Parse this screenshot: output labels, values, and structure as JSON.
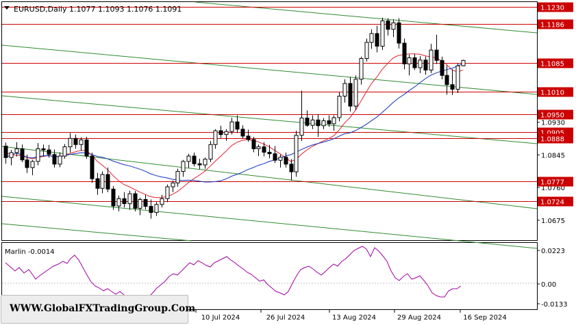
{
  "header": {
    "symbol_line": "EURUSD,Daily  1.1077  1.1093  1.1076  1.1091"
  },
  "indicator": {
    "label": "Marlin -0.0014",
    "axis_ticks": [
      "0.0223",
      "0.00",
      "-0.0133"
    ]
  },
  "watermark": "WWW.GlobalFXTradingGroup.Com",
  "colors": {
    "bull": "#ffffff",
    "bear": "#000000",
    "level": "#cc0000",
    "channel": "#2e8b2e",
    "ma_fast": "#e0202a",
    "ma_slow": "#1030c0",
    "osc": "#a000a0",
    "label_bg": "#cc0000"
  },
  "chart_data": {
    "type": "candlestick",
    "symbol": "EURUSD",
    "timeframe": "Daily",
    "last_bar": {
      "open": 1.1077,
      "high": 1.1093,
      "low": 1.1076,
      "close": 1.1091
    },
    "ylim": [
      1.0623,
      1.1243
    ],
    "x_tick_labels": [
      "10 Jul 2024",
      "26 Jul 2024",
      "13 Aug 2024",
      "29 Aug 2024",
      "16 Sep 2024"
    ],
    "y_tick_labels": [
      "1.0930",
      "1.0845",
      "1.0760",
      "1.0675"
    ],
    "levels": [
      {
        "label": "1.1230",
        "value": 1.123
      },
      {
        "label": "1.1186",
        "value": 1.1186
      },
      {
        "label": "1.1085",
        "value": 1.1085
      },
      {
        "label": "1.1010",
        "value": 1.101
      },
      {
        "label": "1.0950",
        "value": 1.095
      },
      {
        "label": "1.0905",
        "value": 1.0905
      },
      {
        "label": "1.0888",
        "value": 1.0888
      },
      {
        "label": "1.0777",
        "value": 1.0777
      },
      {
        "label": "1.0724",
        "value": 1.0724
      }
    ],
    "candles": [
      [
        1.0868,
        1.0877,
        1.0822,
        1.0838
      ],
      [
        1.0838,
        1.0858,
        1.0818,
        1.0851
      ],
      [
        1.0851,
        1.0878,
        1.0841,
        1.0861
      ],
      [
        1.0861,
        1.0872,
        1.0826,
        1.0832
      ],
      [
        1.0832,
        1.0846,
        1.0798,
        1.0812
      ],
      [
        1.0812,
        1.0832,
        1.0792,
        1.0828
      ],
      [
        1.0828,
        1.0876,
        1.0818,
        1.0861
      ],
      [
        1.0861,
        1.0872,
        1.0841,
        1.0858
      ],
      [
        1.0858,
        1.0871,
        1.0838,
        1.0846
      ],
      [
        1.0846,
        1.0859,
        1.0812,
        1.0821
      ],
      [
        1.0821,
        1.0852,
        1.0813,
        1.0842
      ],
      [
        1.0842,
        1.0873,
        1.0835,
        1.0866
      ],
      [
        1.0866,
        1.0902,
        1.0851,
        1.0888
      ],
      [
        1.0888,
        1.0898,
        1.0861,
        1.0872
      ],
      [
        1.0872,
        1.0891,
        1.0856,
        1.0884
      ],
      [
        1.0884,
        1.0892,
        1.0835,
        1.0842
      ],
      [
        1.0842,
        1.0851,
        1.0772,
        1.0783
      ],
      [
        1.0783,
        1.0798,
        1.0741,
        1.0758
      ],
      [
        1.0758,
        1.0802,
        1.0745,
        1.0794
      ],
      [
        1.0794,
        1.0812,
        1.0748,
        1.0756
      ],
      [
        1.0756,
        1.0764,
        1.0702,
        1.0712
      ],
      [
        1.0712,
        1.0739,
        1.0698,
        1.0731
      ],
      [
        1.0731,
        1.0748,
        1.0708,
        1.0718
      ],
      [
        1.0718,
        1.0752,
        1.0702,
        1.0744
      ],
      [
        1.0744,
        1.0751,
        1.0698,
        1.0706
      ],
      [
        1.0706,
        1.0734,
        1.0688,
        1.0729
      ],
      [
        1.0729,
        1.0741,
        1.0703,
        1.0711
      ],
      [
        1.0711,
        1.0729,
        1.0679,
        1.0695
      ],
      [
        1.0695,
        1.0722,
        1.0686,
        1.0716
      ],
      [
        1.0716,
        1.0741,
        1.0708,
        1.0731
      ],
      [
        1.0731,
        1.0768,
        1.0722,
        1.0762
      ],
      [
        1.0762,
        1.0778,
        1.0748,
        1.0772
      ],
      [
        1.0772,
        1.0809,
        1.0762,
        1.0802
      ],
      [
        1.0802,
        1.0832,
        1.0788,
        1.0828
      ],
      [
        1.0828,
        1.0848,
        1.0811,
        1.0842
      ],
      [
        1.0842,
        1.0851,
        1.0815,
        1.0822
      ],
      [
        1.0822,
        1.0835,
        1.0808,
        1.0819
      ],
      [
        1.0819,
        1.0838,
        1.0809,
        1.0834
      ],
      [
        1.0834,
        1.0881,
        1.0826,
        1.0872
      ],
      [
        1.0872,
        1.0912,
        1.0861,
        1.0908
      ],
      [
        1.0908,
        1.0921,
        1.0889,
        1.0898
      ],
      [
        1.0898,
        1.0912,
        1.0882,
        1.0906
      ],
      [
        1.0906,
        1.0942,
        1.0898,
        1.0931
      ],
      [
        1.0931,
        1.0948,
        1.0902,
        1.0912
      ],
      [
        1.0912,
        1.0922,
        1.0888,
        1.0894
      ],
      [
        1.0894,
        1.0911,
        1.0879,
        1.0885
      ],
      [
        1.0885,
        1.0892,
        1.0852,
        1.0861
      ],
      [
        1.0861,
        1.0872,
        1.0842,
        1.0866
      ],
      [
        1.0866,
        1.0878,
        1.0841,
        1.0852
      ],
      [
        1.0852,
        1.0871,
        1.0836,
        1.0848
      ],
      [
        1.0848,
        1.0868,
        1.0824,
        1.0831
      ],
      [
        1.0831,
        1.0846,
        1.0812,
        1.0839
      ],
      [
        1.0839,
        1.0851,
        1.0812,
        1.0821
      ],
      [
        1.0821,
        1.0834,
        1.0778,
        1.0801
      ],
      [
        1.0801,
        1.0908,
        1.0788,
        1.0896
      ],
      [
        1.0896,
        1.1012,
        1.0881,
        1.0941
      ],
      [
        1.0941,
        1.0961,
        1.0918,
        1.0922
      ],
      [
        1.0922,
        1.0948,
        1.0912,
        1.0936
      ],
      [
        1.0936,
        1.0951,
        1.0892,
        1.0921
      ],
      [
        1.0921,
        1.0941,
        1.0912,
        1.0934
      ],
      [
        1.0934,
        1.0948,
        1.0918,
        1.0926
      ],
      [
        1.0926,
        1.0948,
        1.0908,
        1.0942
      ],
      [
        1.0942,
        1.1008,
        1.0932,
        1.0998
      ],
      [
        1.0998,
        1.1042,
        1.0981,
        1.1031
      ],
      [
        1.1031,
        1.1048,
        1.0958,
        1.0972
      ],
      [
        1.0972,
        1.1052,
        1.0962,
        1.1042
      ],
      [
        1.1042,
        1.1101,
        1.1028,
        1.1096
      ],
      [
        1.1096,
        1.1148,
        1.1088,
        1.1138
      ],
      [
        1.1138,
        1.1172,
        1.1121,
        1.1161
      ],
      [
        1.1161,
        1.1181,
        1.1112,
        1.1128
      ],
      [
        1.1128,
        1.1202,
        1.1118,
        1.1194
      ],
      [
        1.1194,
        1.1201,
        1.1156,
        1.1172
      ],
      [
        1.1172,
        1.1198,
        1.1152,
        1.1189
      ],
      [
        1.1189,
        1.1201,
        1.1122,
        1.1136
      ],
      [
        1.1136,
        1.1148,
        1.1068,
        1.1082
      ],
      [
        1.1082,
        1.1106,
        1.1052,
        1.1098
      ],
      [
        1.1098,
        1.1108,
        1.1066,
        1.1072
      ],
      [
        1.1072,
        1.1102,
        1.1058,
        1.1092
      ],
      [
        1.1092,
        1.1101,
        1.1054,
        1.1066
      ],
      [
        1.1066,
        1.1134,
        1.1058,
        1.1118
      ],
      [
        1.1118,
        1.1158,
        1.1082,
        1.1091
      ],
      [
        1.1091,
        1.1101,
        1.1042,
        1.1052
      ],
      [
        1.1052,
        1.1078,
        1.1002,
        1.1028
      ],
      [
        1.1028,
        1.1068,
        1.1001,
        1.1016
      ],
      [
        1.1016,
        1.1084,
        1.1006,
        1.1077
      ],
      [
        1.1077,
        1.1093,
        1.1076,
        1.1091
      ]
    ],
    "ma_fast": [
      1.0851,
      1.0846,
      1.0844,
      1.0843,
      1.0838,
      1.0835,
      1.0838,
      1.0841,
      1.0843,
      1.0841,
      1.084,
      1.0843,
      1.0849,
      1.0853,
      1.0857,
      1.0856,
      1.0845,
      1.0829,
      1.0818,
      1.0806,
      1.0791,
      1.0778,
      1.0768,
      1.0762,
      1.0755,
      1.0748,
      1.0742,
      1.0736,
      1.0734,
      1.0734,
      1.0737,
      1.0742,
      1.075,
      1.0761,
      1.0773,
      1.0783,
      1.0792,
      1.0802,
      1.0815,
      1.0829,
      1.0842,
      1.0855,
      1.0869,
      1.0878,
      1.0883,
      1.0885,
      1.0882,
      1.0879,
      1.0873,
      1.0866,
      1.0857,
      1.0848,
      1.0838,
      1.0828,
      1.0833,
      1.0847,
      1.0858,
      1.0867,
      1.0874,
      1.0881,
      1.0887,
      1.0895,
      1.091,
      1.0928,
      1.0942,
      1.0961,
      1.0984,
      1.1008,
      1.1031,
      1.1048,
      1.1068,
      1.1083,
      1.1097,
      1.1104,
      1.1106,
      1.1108,
      1.1108,
      1.1107,
      1.1103,
      1.11,
      1.1098,
      1.109,
      1.108,
      1.1066,
      1.1061,
      1.1066
    ]
  }
}
